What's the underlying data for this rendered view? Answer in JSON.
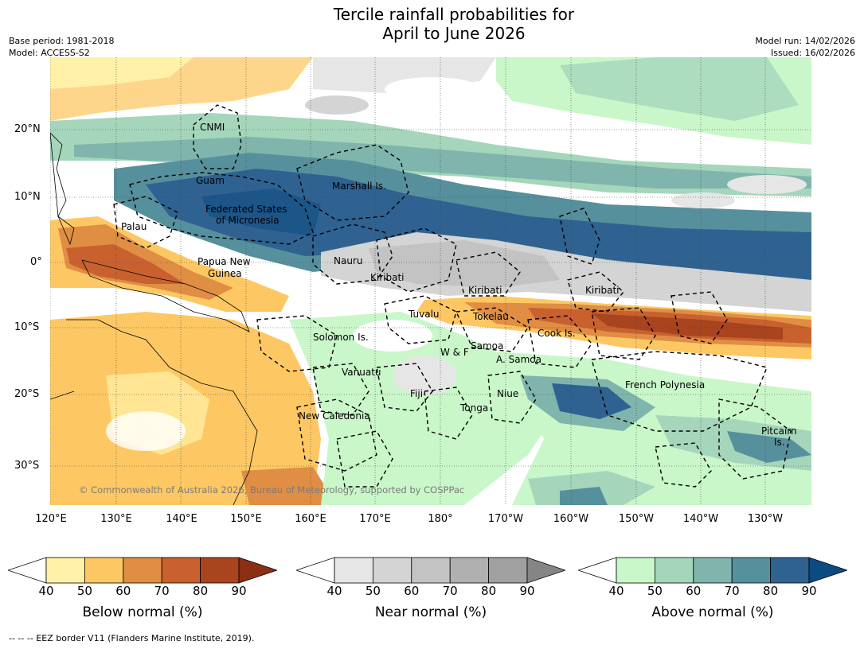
{
  "title": {
    "line1": "Tercile rainfall probabilities for",
    "line2": "April to June 2026"
  },
  "meta_left": {
    "base_period": "Base period: 1981-2018",
    "model": "Model: ACCESS-S2"
  },
  "meta_right": {
    "model_run": "Model run: 14/02/2026",
    "issued": "Issued: 16/02/2026"
  },
  "map": {
    "lat_labels": [
      "20°N",
      "10°N",
      "0°",
      "10°S",
      "20°S",
      "30°S"
    ],
    "lon_labels": [
      "120°E",
      "130°E",
      "140°E",
      "150°E",
      "160°E",
      "170°E",
      "180°",
      "170°W",
      "160°W",
      "150°W",
      "140°W",
      "130°W"
    ],
    "places": {
      "cnmi": "CNMI",
      "guam": "Guam",
      "marshall": "Marshall Is.",
      "fsm_1": "Federated States",
      "fsm_2": "of Micronesia",
      "palau": "Palau",
      "png_1": "Papua New",
      "png_2": "Guinea",
      "nauru": "Nauru",
      "kiribati_w": "Kiribati",
      "kiribati_c": "Kiribati",
      "kiribati_e": "Kiribati",
      "tuvalu": "Tuvalu",
      "tokelau": "Tokelau",
      "cook": "Cook Is.",
      "solomon": "Solomon Is.",
      "wf": "W & F",
      "samoa": "Samoa",
      "asamoa": "A. Samoa",
      "vanuatu": "Vanuatu",
      "fiji": "Fiji",
      "niue": "Niue",
      "tonga": "Tonga",
      "french_polynesia": "French Polynesia",
      "new_caledonia": "New Caledonia",
      "pitcairn_1": "Pitcairn",
      "pitcairn_2": "Is."
    },
    "copyright": "© Commonwealth of Australia 2026, Bureau of Meteorology, supported by COSPPac"
  },
  "colorbars": [
    {
      "title": "Below normal (%)",
      "ticks": [
        "40",
        "50",
        "60",
        "70",
        "80",
        "90"
      ],
      "colors": [
        "#fff1a8",
        "#fdc864",
        "#e08e44",
        "#c9612f",
        "#a9441f",
        "#8a2f14"
      ]
    },
    {
      "title": "Near normal (%)",
      "ticks": [
        "40",
        "50",
        "60",
        "70",
        "80",
        "90"
      ],
      "colors": [
        "#e6e6e6",
        "#d4d4d4",
        "#c3c3c3",
        "#b0b0b0",
        "#a0a0a0",
        "#858585"
      ]
    },
    {
      "title": "Above normal (%)",
      "ticks": [
        "40",
        "50",
        "60",
        "70",
        "80",
        "90"
      ],
      "colors": [
        "#c9f7c9",
        "#a5d6bb",
        "#7fb5ac",
        "#57909d",
        "#2f6291",
        "#0c4a82"
      ]
    }
  ],
  "footnote": "--  --  -- EEZ border V11 (Flanders Marine Institute, 2019)."
}
